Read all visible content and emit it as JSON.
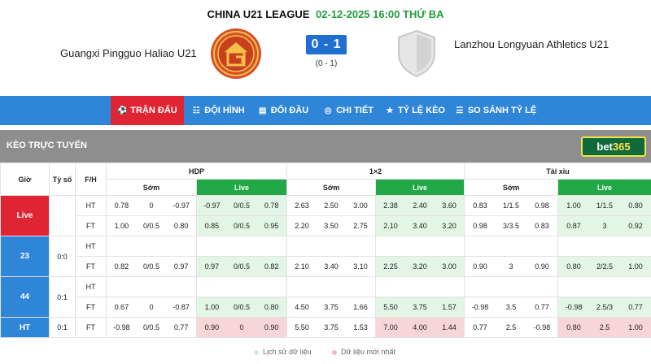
{
  "match": {
    "league": "CHINA U21 LEAGUE",
    "datetime": "02-12-2025 16:00 THỨ BA",
    "home_team": "Guangxi Pingguo Haliao U21",
    "away_team": "Lanzhou Longyuan Athletics U21",
    "score": "0 - 1",
    "ht_score": "(0 - 1)"
  },
  "nav": {
    "items": [
      {
        "label": "TRẬN ĐẤU",
        "icon": "soccer-ball-icon",
        "active": true
      },
      {
        "label": "ĐỘI HÌNH",
        "icon": "lineup-icon",
        "active": false
      },
      {
        "label": "ĐỐI ĐẦU",
        "icon": "head-to-head-icon",
        "active": false
      },
      {
        "label": "CHI TIẾT",
        "icon": "details-icon",
        "active": false
      },
      {
        "label": "TỶ LỆ KÈO",
        "icon": "odds-icon",
        "active": false
      },
      {
        "label": "SO SÁNH TỶ LỆ",
        "icon": "compare-icon",
        "active": false
      }
    ]
  },
  "section": {
    "title": "KÈO TRỰC TUYẾN",
    "bookmaker_a": "bet",
    "bookmaker_b": "365"
  },
  "table": {
    "headers": {
      "gio": "Giờ",
      "ty_so": "Tỷ số",
      "fh": "F/H",
      "hdp": "HDP",
      "one_x_two": "1×2",
      "tai_xiu": "Tài xỉu",
      "som": "Sớm",
      "live": "Live"
    },
    "rows": [
      {
        "label": "Live",
        "label_color": "red",
        "score": "",
        "phase": "HT",
        "hdp_som": [
          "0.78",
          "0",
          "-0.97"
        ],
        "hdp_live": [
          "-0.97",
          "0/0.5",
          "0.78"
        ],
        "x12_som": [
          "2.63",
          "2.50",
          "3.00"
        ],
        "x12_live": [
          "2.38",
          "2.40",
          "3.60"
        ],
        "tx_som": [
          "0.83",
          "1/1.5",
          "0.98"
        ],
        "tx_live": [
          "1.00",
          "1/1.5",
          "0.80"
        ]
      },
      {
        "label": "",
        "label_color": "red",
        "score": "",
        "phase": "FT",
        "hdp_som": [
          "1.00",
          "0/0.5",
          "0.80"
        ],
        "hdp_live": [
          "0.85",
          "0/0.5",
          "0.95"
        ],
        "x12_som": [
          "2.20",
          "3.50",
          "2.75"
        ],
        "x12_live": [
          "2.10",
          "3.40",
          "3.20"
        ],
        "tx_som": [
          "0.98",
          "3/3.5",
          "0.83"
        ],
        "tx_live": [
          "0.87",
          "3",
          "0.92"
        ]
      },
      {
        "label": "23",
        "label_color": "blue",
        "score": "0:0",
        "phase": "HT",
        "hdp_som": [
          "",
          "",
          ""
        ],
        "hdp_live": [
          "",
          "",
          ""
        ],
        "x12_som": [
          "",
          "",
          ""
        ],
        "x12_live": [
          "",
          "",
          ""
        ],
        "tx_som": [
          "",
          "",
          ""
        ],
        "tx_live": [
          "",
          "",
          ""
        ]
      },
      {
        "label": "",
        "label_color": "blue",
        "score": "",
        "phase": "FT",
        "hdp_som": [
          "0.82",
          "0/0.5",
          "0.97"
        ],
        "hdp_live": [
          "0.97",
          "0/0.5",
          "0.82"
        ],
        "x12_som": [
          "2.10",
          "3.40",
          "3.10"
        ],
        "x12_live": [
          "2.25",
          "3.20",
          "3.00"
        ],
        "tx_som": [
          "0.90",
          "3",
          "0.90"
        ],
        "tx_live": [
          "0.80",
          "2/2.5",
          "1.00"
        ]
      },
      {
        "label": "44",
        "label_color": "blue",
        "score": "0:1",
        "phase": "HT",
        "hdp_som": [
          "",
          "",
          ""
        ],
        "hdp_live": [
          "",
          "",
          ""
        ],
        "x12_som": [
          "",
          "",
          ""
        ],
        "x12_live": [
          "",
          "",
          ""
        ],
        "tx_som": [
          "",
          "",
          ""
        ],
        "tx_live": [
          "",
          "",
          ""
        ]
      },
      {
        "label": "",
        "label_color": "blue",
        "score": "",
        "phase": "FT",
        "hdp_som": [
          "0.67",
          "0",
          "-0.87"
        ],
        "hdp_live": [
          "1.00",
          "0/0.5",
          "0.80"
        ],
        "x12_som": [
          "4.50",
          "3.75",
          "1.66"
        ],
        "x12_live": [
          "5.50",
          "3.75",
          "1.57"
        ],
        "tx_som": [
          "-0.98",
          "3.5",
          "0.77"
        ],
        "tx_live": [
          "-0.98",
          "2.5/3",
          "0.77"
        ]
      },
      {
        "label": "HT",
        "label_color": "blue",
        "score": "0:1",
        "phase": "FT",
        "hdp_som": [
          "-0.98",
          "0/0.5",
          "0.77"
        ],
        "hdp_live": [
          "0.90",
          "0",
          "0.90"
        ],
        "x12_som": [
          "5.50",
          "3.75",
          "1.53"
        ],
        "x12_live": [
          "7.00",
          "4.00",
          "1.44"
        ],
        "tx_som": [
          "0.77",
          "2.5",
          "-0.98"
        ],
        "tx_live": [
          "0.80",
          "2.5",
          "1.00"
        ]
      }
    ]
  },
  "legend": {
    "history": "Lịch sử dữ liệu",
    "latest": "Dữ liệu mới nhất"
  },
  "colors": {
    "accent_blue": "#2f86d8",
    "active_red": "#e02433",
    "live_green": "#22a846",
    "live_bg": "#e3f6e5",
    "latest_pink": "#f8d6d8",
    "date_green": "#1e9e3a"
  }
}
